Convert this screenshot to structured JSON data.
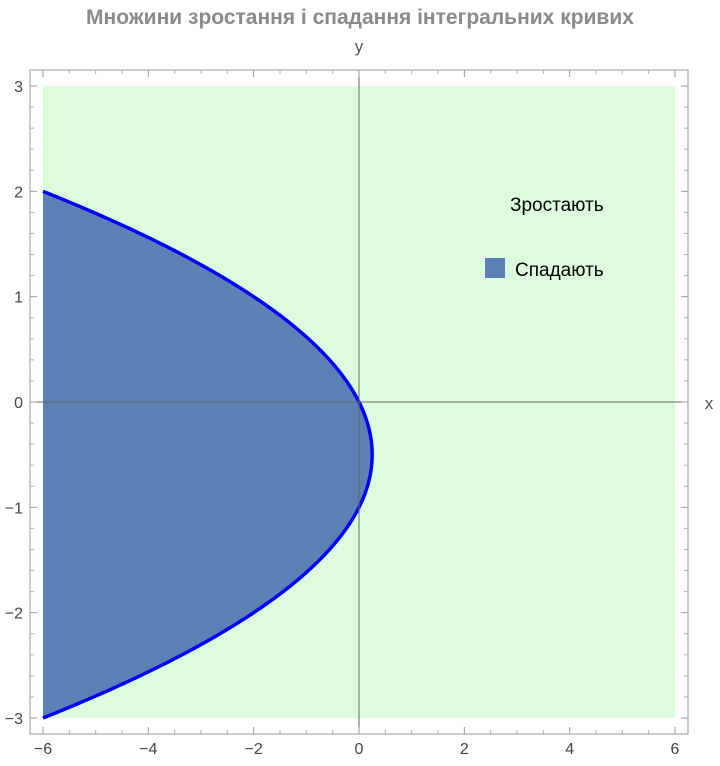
{
  "chart_data": {
    "type": "area",
    "title": "Множини зростання і спадання інтегральних кривих",
    "xlabel": "x",
    "ylabel": "y",
    "xlim": [
      -6,
      6
    ],
    "ylim": [
      -3,
      3
    ],
    "x_ticks": [
      -6,
      -4,
      -2,
      0,
      2,
      4,
      6
    ],
    "y_ticks": [
      -3,
      -2,
      -1,
      0,
      1,
      2,
      3
    ],
    "x_tick_labels": [
      "−6",
      "−4",
      "−2",
      "0",
      "2",
      "4",
      "6"
    ],
    "y_tick_labels": [
      "−3",
      "−2",
      "−1",
      "0",
      "1",
      "2",
      "3"
    ],
    "boundary_curve": {
      "relation": "x = -y^2 - y",
      "points": [
        {
          "x": -6.0,
          "y": 2.0
        },
        {
          "x": -3.75,
          "y": 1.5
        },
        {
          "x": -2.0,
          "y": 1.0
        },
        {
          "x": -0.75,
          "y": 0.5
        },
        {
          "x": 0.0,
          "y": 0.0
        },
        {
          "x": 0.25,
          "y": -0.5
        },
        {
          "x": 0.0,
          "y": -1.0
        },
        {
          "x": -0.75,
          "y": -1.5
        },
        {
          "x": -2.0,
          "y": -2.0
        },
        {
          "x": -3.75,
          "y": -2.5
        },
        {
          "x": -6.0,
          "y": -3.0
        }
      ]
    },
    "regions": [
      {
        "name": "Зростають",
        "description": "x > -y^2 - y",
        "color": "#ddfcdd",
        "legend_swatch": false
      },
      {
        "name": "Спадають",
        "description": "x < -y^2 - y",
        "color": "#5d81b4",
        "legend_swatch": true
      }
    ],
    "curve_color": "#0000ff",
    "grid": false,
    "legend_position": "top-right",
    "axes_through_origin": true
  }
}
